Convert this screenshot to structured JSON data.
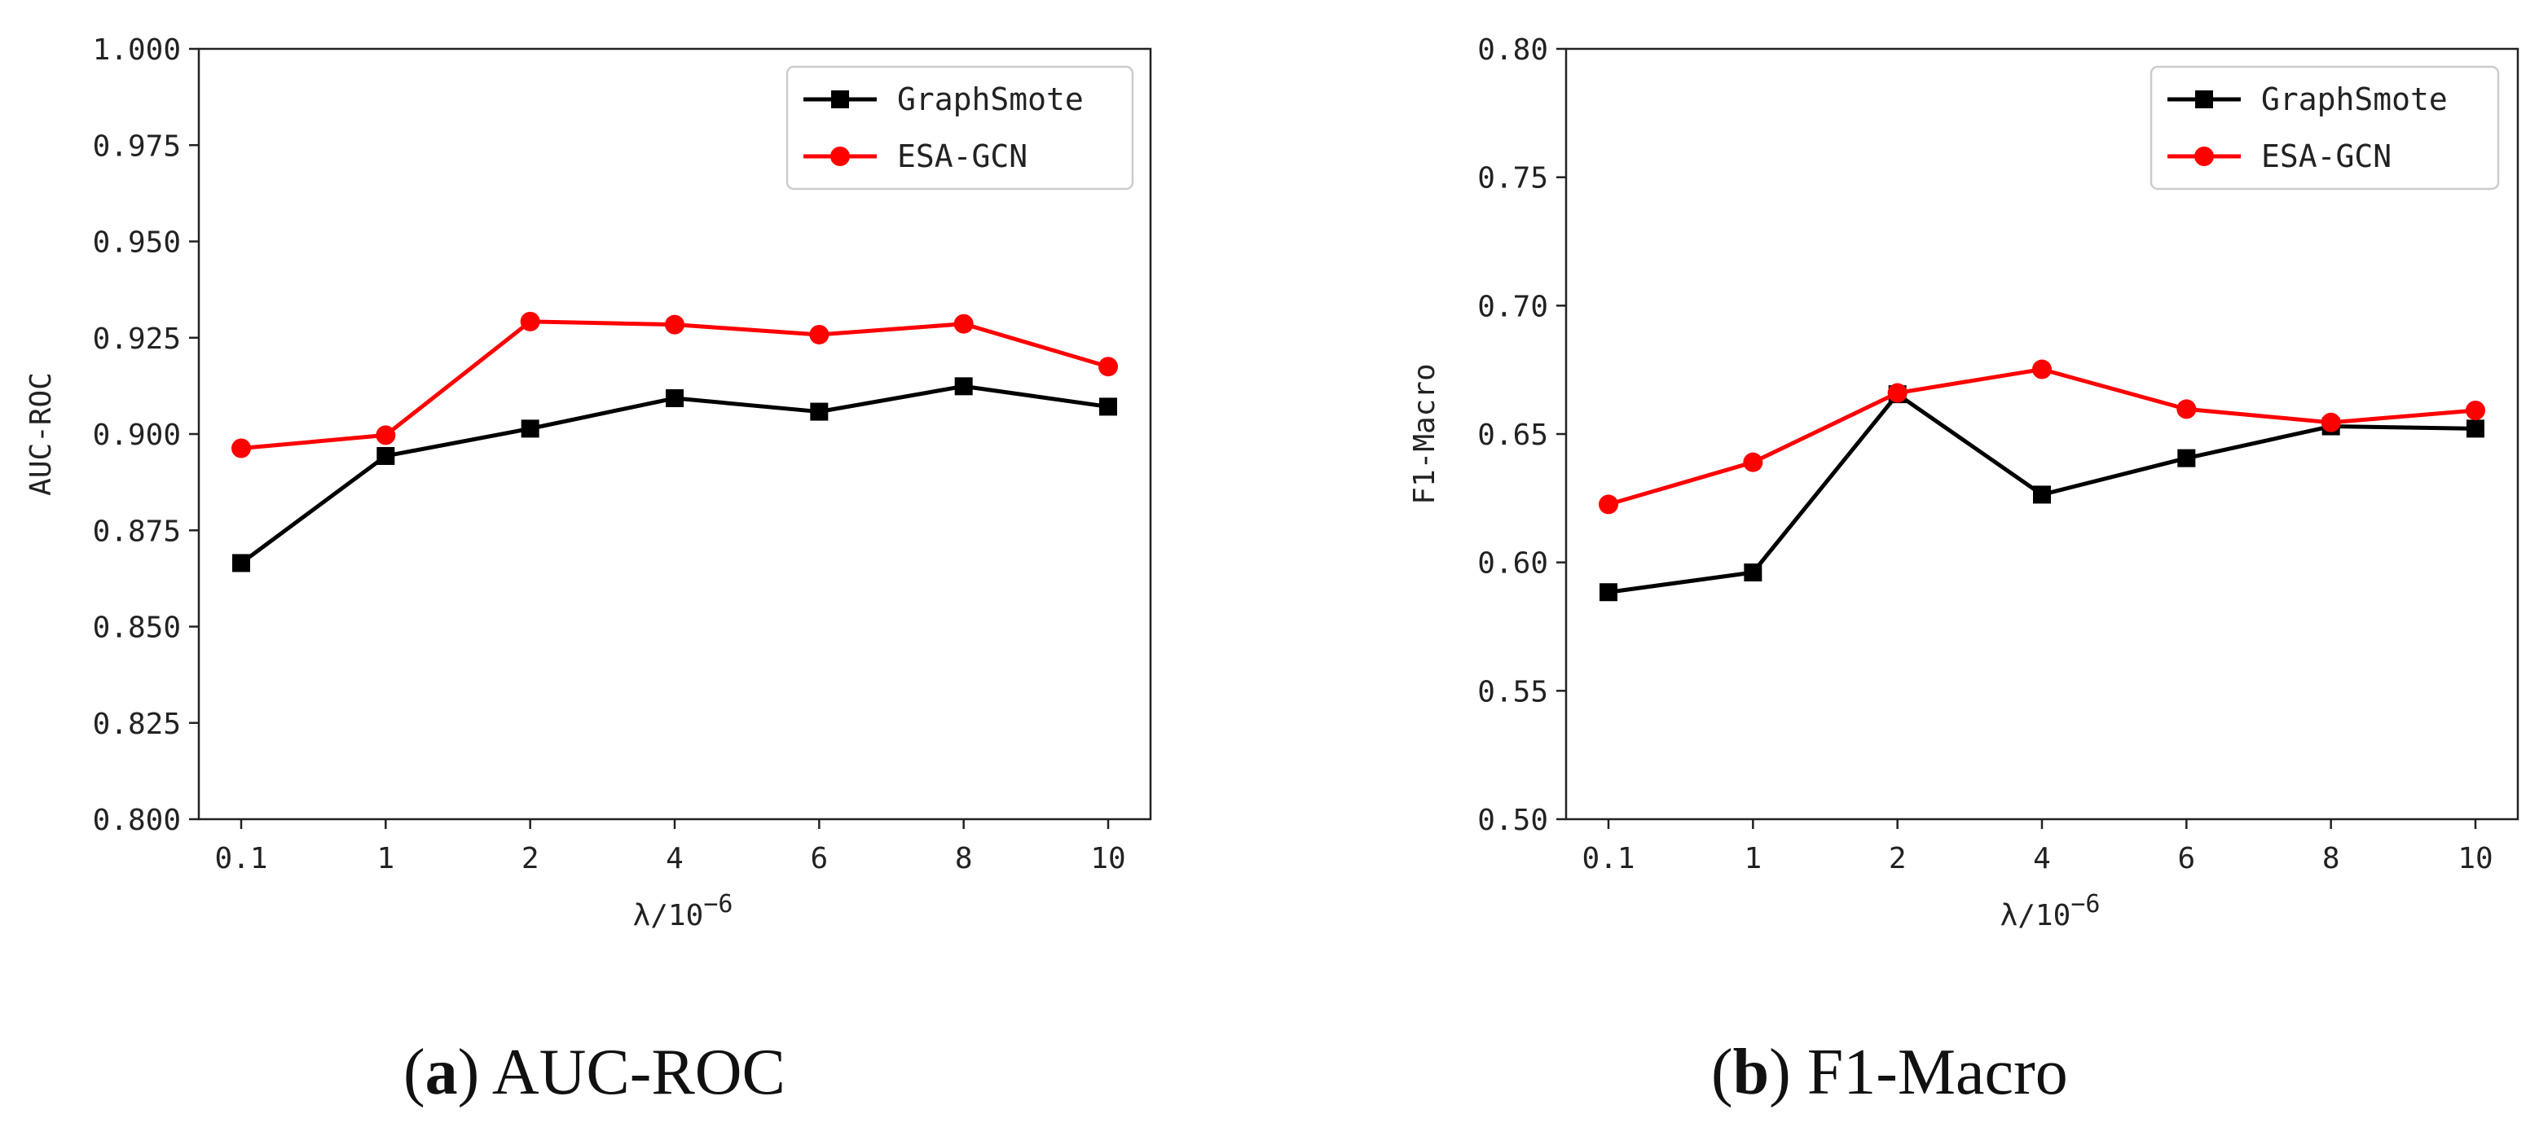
{
  "chart_data": [
    {
      "type": "line",
      "caption_letter": "a",
      "caption_text": "AUC-ROC",
      "xlabel": "λ/10",
      "xlabel_exp": "−6",
      "ylabel": "AUC-ROC",
      "categories": [
        "0.1",
        "1",
        "2",
        "4",
        "6",
        "8",
        "10"
      ],
      "ylim": [
        0.8,
        1.0
      ],
      "yticks": [
        "0.800",
        "0.825",
        "0.850",
        "0.875",
        "0.900",
        "0.925",
        "0.950",
        "0.975",
        "1.000"
      ],
      "legend_position": "top-right",
      "series": [
        {
          "name": "GraphSmote",
          "color": "#000000",
          "marker": "square",
          "values": [
            0.8665,
            0.8943,
            0.9014,
            0.9093,
            0.9058,
            0.9124,
            0.9071
          ]
        },
        {
          "name": "ESA-GCN",
          "color": "#ff0000",
          "marker": "circle",
          "values": [
            0.8963,
            0.8997,
            0.9292,
            0.9284,
            0.9258,
            0.9286,
            0.9175
          ]
        }
      ]
    },
    {
      "type": "line",
      "caption_letter": "b",
      "caption_text": "F1-Macro",
      "xlabel": "λ/10",
      "xlabel_exp": "−6",
      "ylabel": "F1-Macro",
      "categories": [
        "0.1",
        "1",
        "2",
        "4",
        "6",
        "8",
        "10"
      ],
      "ylim": [
        0.5,
        0.8
      ],
      "yticks": [
        "0.50",
        "0.55",
        "0.60",
        "0.65",
        "0.70",
        "0.75",
        "0.80"
      ],
      "legend_position": "top-right",
      "series": [
        {
          "name": "GraphSmote",
          "color": "#000000",
          "marker": "square",
          "values": [
            0.5884,
            0.5961,
            0.6655,
            0.6264,
            0.6406,
            0.653,
            0.6521
          ]
        },
        {
          "name": "ESA-GCN",
          "color": "#ff0000",
          "marker": "circle",
          "values": [
            0.6226,
            0.639,
            0.666,
            0.6752,
            0.6597,
            0.6545,
            0.6592
          ]
        }
      ]
    }
  ]
}
